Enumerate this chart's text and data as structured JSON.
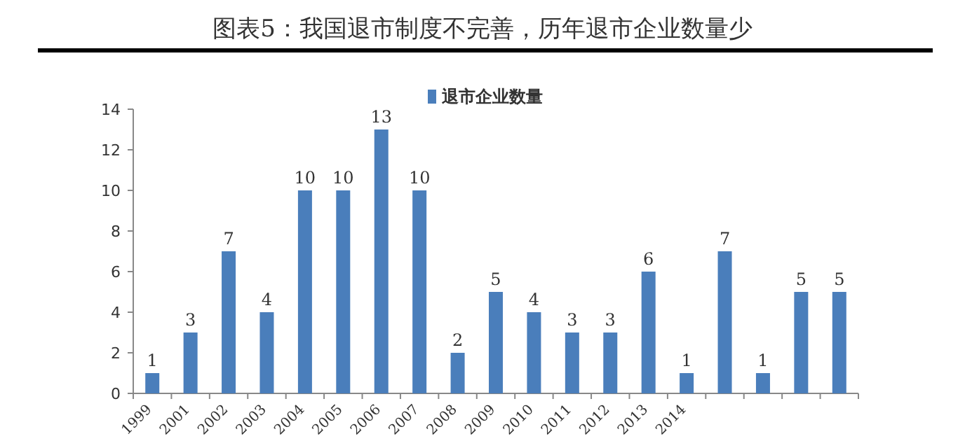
{
  "chart_data": {
    "type": "bar",
    "title": "图表5：我国退市制度不完善，历年退市企业数量少",
    "categories": [
      "1999",
      "2001",
      "2002",
      "2003",
      "2004",
      "2005",
      "2006",
      "2007",
      "2008",
      "2009",
      "2010",
      "2011",
      "2012",
      "2013",
      "2014",
      null,
      null,
      null,
      null
    ],
    "series": [
      {
        "name": "退市企业数量",
        "color": "#4a7ebb",
        "values": [
          1,
          3,
          7,
          4,
          10,
          10,
          13,
          10,
          2,
          5,
          4,
          3,
          3,
          6,
          1,
          7,
          1,
          5,
          5
        ]
      }
    ],
    "ylim": [
      0,
      14
    ],
    "yticks": [
      0,
      2,
      4,
      6,
      8,
      10,
      12,
      14
    ],
    "data_labels": true,
    "legend": "top",
    "grid": false
  }
}
